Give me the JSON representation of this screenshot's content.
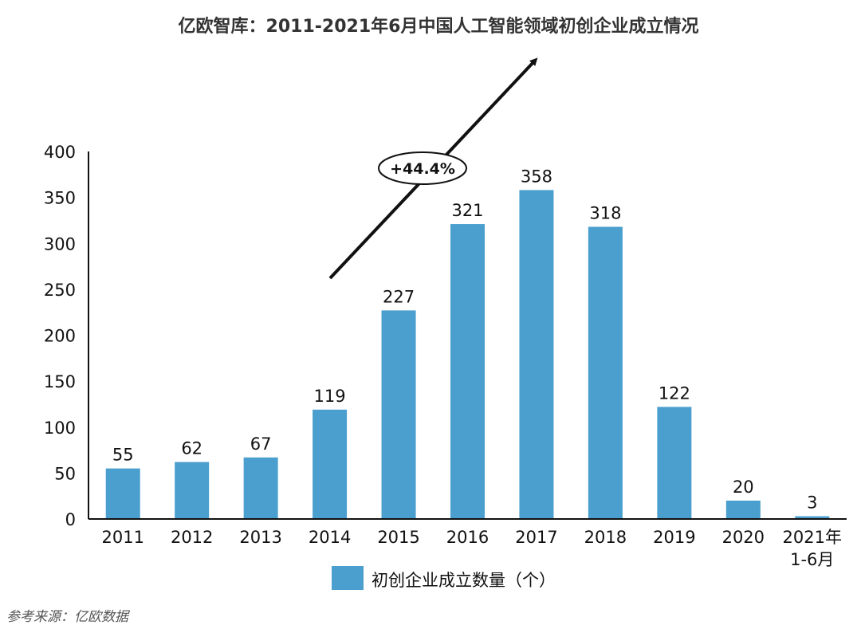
{
  "chart_data": {
    "type": "bar",
    "title": "亿欧智库：2011-2021年6月中国人工智能领域初创企业成立情况",
    "categories": [
      "2011",
      "2012",
      "2013",
      "2014",
      "2015",
      "2016",
      "2017",
      "2018",
      "2019",
      "2020",
      "2021年\n1-6月"
    ],
    "series": [
      {
        "name": "初创企业成立数量（个）",
        "values": [
          55,
          62,
          67,
          119,
          227,
          321,
          358,
          318,
          122,
          20,
          3
        ]
      }
    ],
    "ylim": [
      0,
      400
    ],
    "yticks": [
      0,
      50,
      100,
      150,
      200,
      250,
      300,
      350,
      400
    ],
    "grid": false,
    "legend": "bottom",
    "bar_color": "#4a9fce",
    "annotation": "+44.4%",
    "source": "参考来源：亿欧数据"
  }
}
